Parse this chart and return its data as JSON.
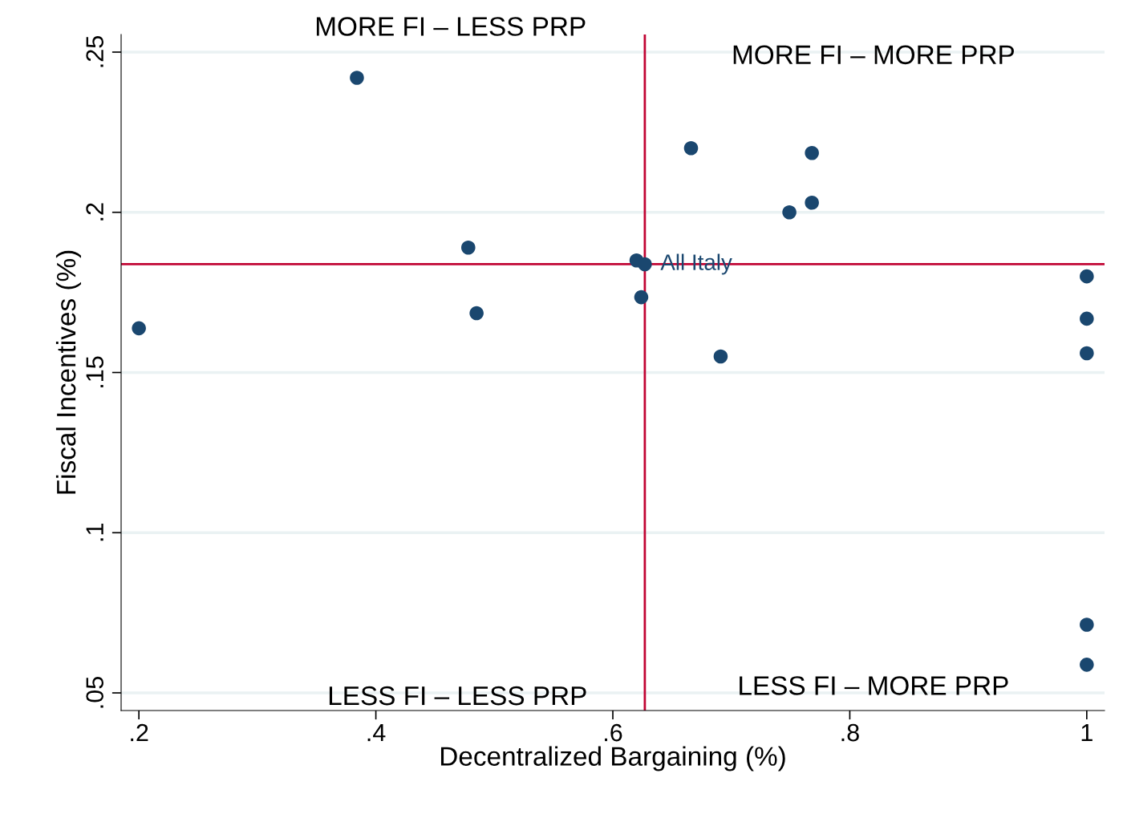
{
  "chart_data": {
    "type": "scatter",
    "xlabel": "Decentralized Bargaining (%)",
    "ylabel": "Fiscal Incentives (%)",
    "x": [
      0.384,
      0.666,
      0.768,
      0.768,
      0.749,
      0.478,
      0.62,
      0.627,
      0.624,
      0.485,
      0.2,
      0.691,
      1.0,
      1.0,
      1.0,
      1.0,
      1.0
    ],
    "series": [
      {
        "color": "#1a476f",
        "values": [
          0.242,
          0.22,
          0.2185,
          0.203,
          0.2,
          0.189,
          0.185,
          0.1838,
          0.1735,
          0.1685,
          0.1638,
          0.155,
          0.18,
          0.1668,
          0.156,
          0.0713,
          0.0588
        ]
      }
    ],
    "marker": "circle",
    "xlim": [
      0.185,
      1.015
    ],
    "ylim": [
      0.0445,
      0.2555
    ],
    "xticks": [
      {
        "value": 0.2,
        "label": ".2"
      },
      {
        "value": 0.4,
        "label": ".4"
      },
      {
        "value": 0.6,
        "label": ".6"
      },
      {
        "value": 0.8,
        "label": ".8"
      },
      1
    ],
    "yticks": [
      {
        "value": 0.05,
        "label": ".05"
      },
      {
        "value": 0.1,
        "label": ".1"
      },
      {
        "value": 0.15,
        "label": ".15"
      },
      {
        "value": 0.2,
        "label": ".2"
      },
      {
        "value": 0.25,
        "label": ".25"
      }
    ],
    "grid": "y",
    "ref_lines": [
      {
        "axis": "x",
        "value": 0.627,
        "color": "#c10534"
      },
      {
        "axis": "y",
        "value": 0.1838,
        "color": "#c10534"
      }
    ],
    "annotations": [
      {
        "text": "All Italy",
        "x": 0.627,
        "y": 0.1838
      },
      "MORE FI – LESS PRP",
      "MORE FI – MORE PRP",
      "LESS FI – LESS PRP",
      "LESS FI – MORE PRP"
    ]
  }
}
